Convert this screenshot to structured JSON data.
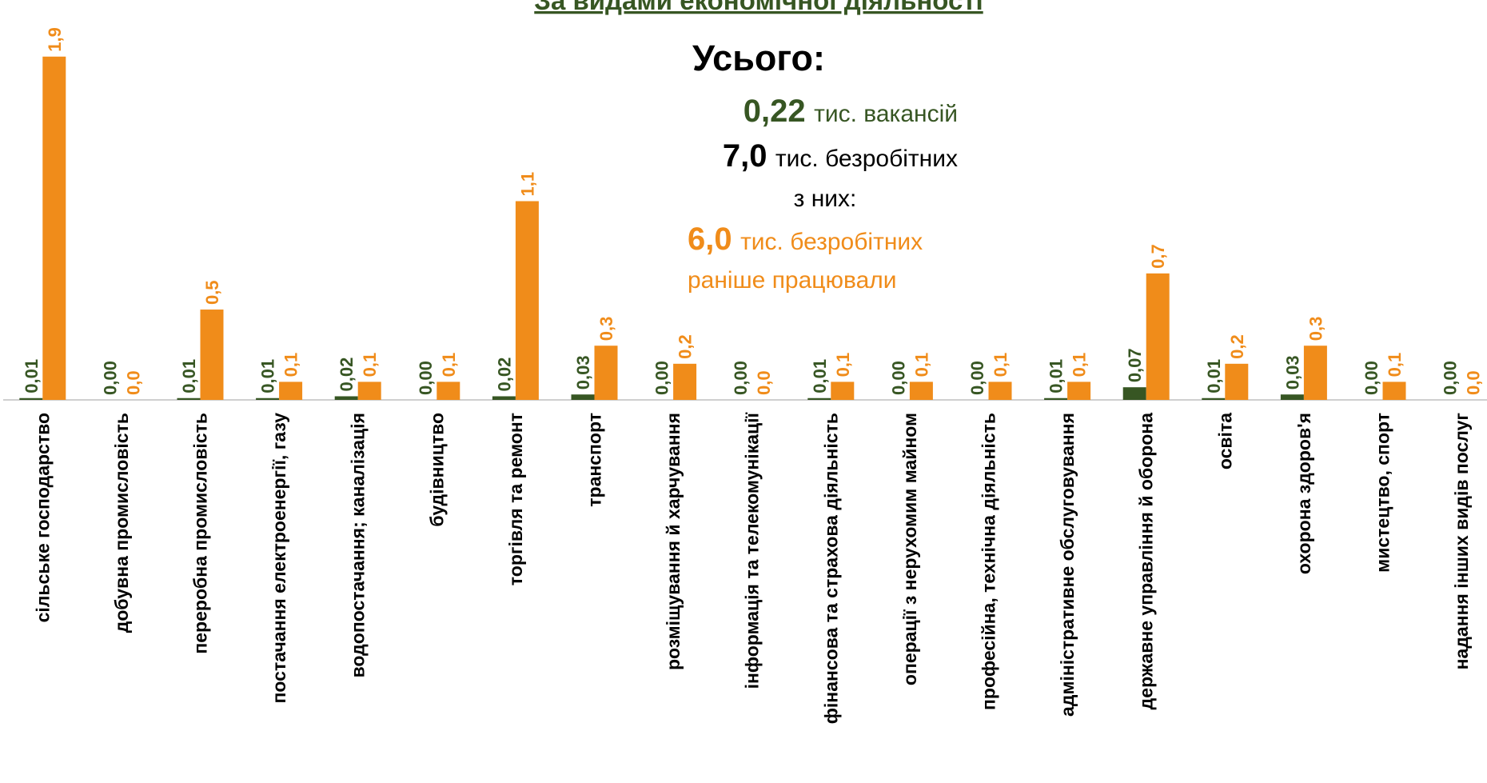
{
  "chart_data": {
    "type": "bar",
    "title": "За видами економічної діяльності",
    "summary": {
      "heading": "Усього:",
      "vacancies_value": "0,22",
      "vacancies_text": "тис. вакансій",
      "unemployed_value": "7,0",
      "unemployed_text": "тис. безробітних",
      "of_them": "з них:",
      "worked_value": "6,0",
      "worked_text": "тис. безробітних",
      "worked_text2": "раніше працювали"
    },
    "categories": [
      "сільське господарство",
      "добувна промисловість",
      "переробна промисловість",
      "постачання електроенергії, газу",
      "водопостачання; каналізація",
      "будівництво",
      "торгівля та ремонт",
      "транспорт",
      "розміщування й харчування",
      "інформація та телекомунікації",
      "фінансова та страхова діяльність",
      "операції з нерухомим майном",
      "професійна, технічна діяльність",
      "адміністративне обслуговування",
      "державне управління й оборона",
      "освіта",
      "охорона здоров'я",
      "мистецтво, спорт",
      "надання інших видів послуг"
    ],
    "series": [
      {
        "name": "тис. вакансій",
        "color": "#375623",
        "values": [
          0.01,
          0.0,
          0.01,
          0.01,
          0.02,
          0.0,
          0.02,
          0.03,
          0.0,
          0.0,
          0.01,
          0.0,
          0.0,
          0.01,
          0.07,
          0.01,
          0.03,
          0.0,
          0.0
        ],
        "value_labels": [
          "0,01",
          "0,00",
          "0,01",
          "0,01",
          "0,02",
          "0,00",
          "0,02",
          "0,03",
          "0,00",
          "0,00",
          "0,01",
          "0,00",
          "0,00",
          "0,01",
          "0,07",
          "0,01",
          "0,03",
          "0,00",
          "0,00"
        ]
      },
      {
        "name": "тис. безробітних раніше працювали",
        "color": "#f08c1a",
        "values": [
          1.9,
          0.0,
          0.5,
          0.1,
          0.1,
          0.1,
          1.1,
          0.3,
          0.2,
          0.0,
          0.1,
          0.1,
          0.1,
          0.1,
          0.7,
          0.2,
          0.3,
          0.1,
          0.0
        ],
        "value_labels": [
          "1,9",
          "0,0",
          "0,5",
          "0,1",
          "0,1",
          "0,1",
          "1,1",
          "0,3",
          "0,2",
          "0,0",
          "0,1",
          "0,1",
          "0,1",
          "0,1",
          "0,7",
          "0,2",
          "0,3",
          "0,1",
          "0,0"
        ]
      }
    ],
    "ylim": [
      0,
      2.2
    ]
  }
}
